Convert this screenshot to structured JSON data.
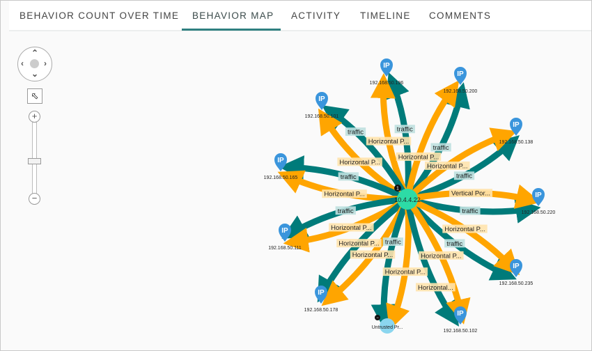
{
  "tabs": [
    {
      "label": "BEHAVIOR COUNT OVER TIME",
      "active": false
    },
    {
      "label": "BEHAVIOR MAP",
      "active": true
    },
    {
      "label": "ACTIVITY",
      "active": false
    },
    {
      "label": "TIMELINE",
      "active": false
    },
    {
      "label": "COMMENTS",
      "active": false
    }
  ],
  "controls": {
    "pan_icon": "pan-arrows-icon",
    "select_icon": "cursor-icon",
    "zoom_in": "+",
    "zoom_out": "−",
    "zoom_level_percent": 40
  },
  "colors": {
    "teal": "#007b7a",
    "orange": "#ffa500",
    "center": "#2ddba6",
    "pin": "#3a95dc",
    "untrusted": "#8bd6ef"
  },
  "graph": {
    "center": {
      "label": "10.4.4.22",
      "badge": "1"
    },
    "nodes": [
      {
        "label": "192.168.50.196",
        "type": "IP"
      },
      {
        "label": "192.168.50.200",
        "type": "IP"
      },
      {
        "label": "192.168.50.101",
        "type": "IP"
      },
      {
        "label": "192.168.50.138",
        "type": "IP"
      },
      {
        "label": "192.168.50.165",
        "type": "IP"
      },
      {
        "label": "192.168.50.220",
        "type": "IP"
      },
      {
        "label": "192.168.50.111",
        "type": "IP"
      },
      {
        "label": "192.168.50.235",
        "type": "IP"
      },
      {
        "label": "192.168.50.178",
        "type": "IP"
      },
      {
        "label": "Untrusted Pr...",
        "type": "untrusted",
        "badge": "−"
      },
      {
        "label": "192.168.50.102",
        "type": "IP"
      }
    ],
    "edge_labels": [
      "Horizontal P...",
      "traffic",
      "Horizontal P...",
      "Horizontal P...",
      "traffic",
      "Horizontal P...",
      "traffic",
      "Horizontal P...",
      "traffic",
      "Vertical Por...",
      "traffic",
      "Horizontal P...",
      "traffic",
      "Horizontal P...",
      "Horizontal P...",
      "traffic",
      "Horizontal P...",
      "Horizontal P...",
      "traffic",
      "Horizontal P...",
      "traffic",
      "Horizontal..."
    ]
  }
}
